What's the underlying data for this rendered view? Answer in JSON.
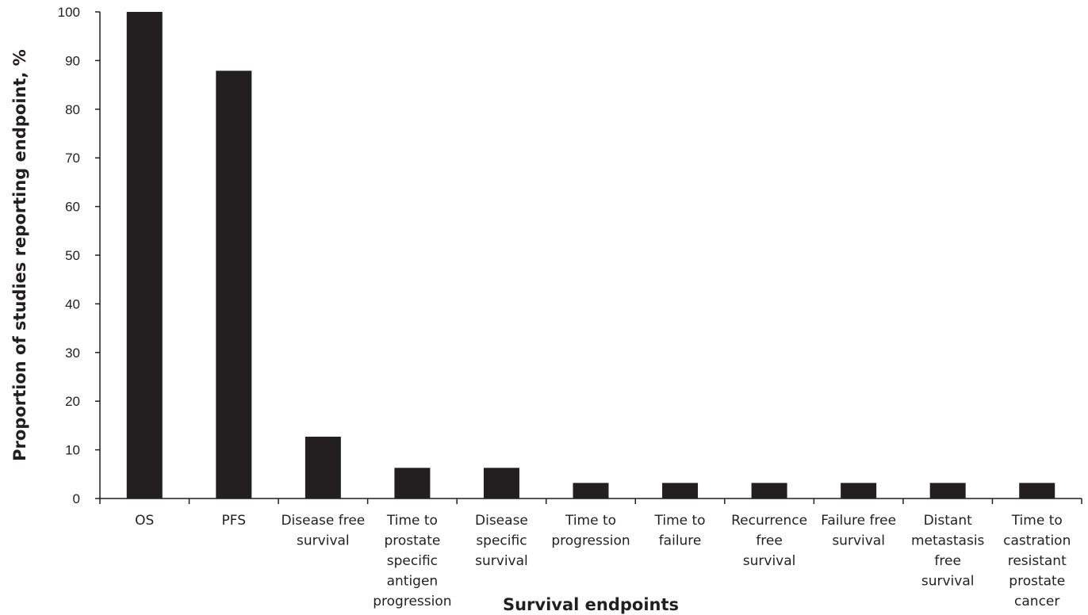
{
  "chart_data": {
    "type": "bar",
    "title": "",
    "xlabel": "Survival endpoints",
    "ylabel": "Proportion of studies reporting endpoint, %",
    "ylim": [
      0,
      100
    ],
    "yticks": [
      0,
      10,
      20,
      30,
      40,
      50,
      60,
      70,
      80,
      90,
      100
    ],
    "grid": false,
    "legend": "none",
    "bar_color": "#231f20",
    "categories": [
      "OS",
      "PFS",
      "Disease free survival",
      "Time to prostate specific antigen progression",
      "Disease specific survival",
      "Time to progression",
      "Time to failure",
      "Recurrence free survival",
      "Failure free survival",
      "Distant metastasis free survival",
      "Time to castration resistant prostate cancer"
    ],
    "category_label_lines": [
      [
        "OS"
      ],
      [
        "PFS"
      ],
      [
        "Disease free",
        "survival"
      ],
      [
        "Time to",
        "prostate",
        "specific",
        "antigen",
        "progression"
      ],
      [
        "Disease",
        "specific",
        "survival"
      ],
      [
        "Time to",
        "progression"
      ],
      [
        "Time to",
        "failure"
      ],
      [
        "Recurrence",
        "free",
        "survival"
      ],
      [
        "Failure free",
        "survival"
      ],
      [
        "Distant",
        "metastasis",
        "free",
        "survival"
      ],
      [
        "Time to",
        "castration",
        "resistant",
        "prostate",
        "cancer"
      ]
    ],
    "values": [
      100,
      87.9,
      12.7,
      6.3,
      6.3,
      3.2,
      3.2,
      3.2,
      3.2,
      3.2,
      3.2
    ]
  }
}
